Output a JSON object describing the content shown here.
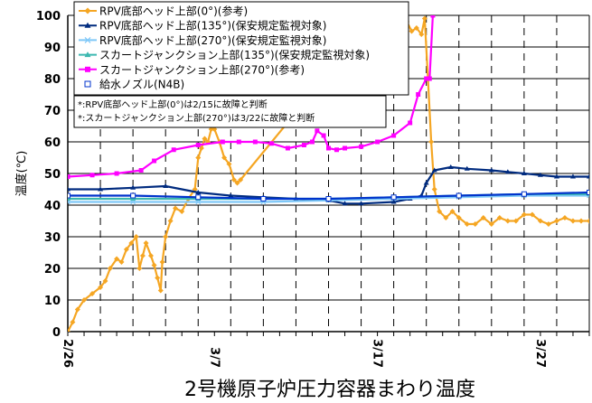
{
  "chart_data": {
    "type": "line",
    "title": "2号機原子炉圧力容器まわり温度",
    "ylabel": "温度(℃)",
    "xlabel": "",
    "ylim": [
      0,
      100
    ],
    "yticks": [
      0,
      10,
      20,
      30,
      40,
      50,
      60,
      70,
      80,
      90,
      100
    ],
    "xlim": [
      0,
      32
    ],
    "xticks": [
      {
        "x": 0,
        "label": "2/26"
      },
      {
        "x": 9,
        "label": "3/7"
      },
      {
        "x": 19,
        "label": "3/17"
      },
      {
        "x": 29,
        "label": "3/27"
      }
    ],
    "grid": {
      "horizontal": true,
      "vertical_dashed": true
    },
    "legend_position": "top-left",
    "series": [
      {
        "name": "RPV底部ヘッド上部(0°)(参考)",
        "color": "#F5A623",
        "marker": "diamond",
        "points": [
          [
            0,
            0
          ],
          [
            0.3,
            3
          ],
          [
            0.6,
            7
          ],
          [
            1,
            10
          ],
          [
            1.5,
            12
          ],
          [
            2,
            14
          ],
          [
            2.3,
            16
          ],
          [
            2.6,
            20
          ],
          [
            3,
            23
          ],
          [
            3.3,
            22
          ],
          [
            3.6,
            26
          ],
          [
            3.9,
            28
          ],
          [
            4.2,
            30
          ],
          [
            4.4,
            20
          ],
          [
            4.6,
            24
          ],
          [
            4.8,
            28
          ],
          [
            5.1,
            24
          ],
          [
            5.3,
            21
          ],
          [
            5.5,
            17
          ],
          [
            5.7,
            13
          ],
          [
            5.8,
            22
          ],
          [
            6,
            30
          ],
          [
            6.3,
            35
          ],
          [
            6.6,
            39
          ],
          [
            7,
            38
          ],
          [
            7.4,
            42
          ],
          [
            7.8,
            45
          ],
          [
            8,
            55
          ],
          [
            8.2,
            58
          ],
          [
            8.4,
            61
          ],
          [
            8.6,
            60
          ],
          [
            8.8,
            64
          ],
          [
            9,
            64
          ],
          [
            9.3,
            60
          ],
          [
            9.6,
            55
          ],
          [
            9.9,
            53
          ],
          [
            10.2,
            48
          ],
          [
            10.4,
            47
          ],
          [
            10.6,
            48
          ],
          [
            20.5,
            110
          ],
          [
            20.8,
            98
          ],
          [
            21.1,
            95
          ],
          [
            21.4,
            96
          ],
          [
            21.7,
            94
          ],
          [
            21.9,
            99
          ],
          [
            22.1,
            80
          ],
          [
            22.3,
            60
          ],
          [
            22.5,
            45
          ],
          [
            22.8,
            38
          ],
          [
            23.2,
            36
          ],
          [
            23.6,
            38
          ],
          [
            24,
            36
          ],
          [
            24.5,
            34
          ],
          [
            25,
            34
          ],
          [
            25.5,
            36
          ],
          [
            26,
            34
          ],
          [
            26.5,
            36
          ],
          [
            27,
            35
          ],
          [
            27.5,
            35
          ],
          [
            28,
            37
          ],
          [
            28.5,
            37
          ],
          [
            29,
            35
          ],
          [
            29.5,
            34
          ],
          [
            30,
            35
          ],
          [
            30.5,
            36
          ],
          [
            31,
            35
          ],
          [
            31.5,
            35
          ],
          [
            32,
            35
          ]
        ]
      },
      {
        "name": "RPV底部ヘッド上部(135°)(保安規定監視対象)",
        "color": "#002B7F",
        "marker": "triangle",
        "points": [
          [
            0,
            45
          ],
          [
            2,
            45
          ],
          [
            4,
            45.5
          ],
          [
            6,
            46
          ],
          [
            8,
            44
          ],
          [
            10,
            43
          ],
          [
            12,
            42.5
          ],
          [
            14,
            42
          ],
          [
            16,
            41.5
          ],
          [
            17,
            40.5
          ],
          [
            18,
            40.5
          ],
          [
            20,
            41
          ],
          [
            21,
            42
          ],
          [
            21.7,
            43
          ],
          [
            22,
            47
          ],
          [
            22.5,
            51
          ],
          [
            23.5,
            52
          ],
          [
            24.5,
            51.5
          ],
          [
            26,
            51
          ],
          [
            27,
            50.5
          ],
          [
            28,
            50
          ],
          [
            29,
            49.5
          ],
          [
            30,
            49
          ],
          [
            31,
            49
          ],
          [
            32,
            49
          ]
        ]
      },
      {
        "name": "RPV底部ヘッド上部(270°)(保安規定監視対象)",
        "color": "#7FC8F8",
        "marker": "x",
        "points": [
          [
            0,
            41
          ],
          [
            4,
            41
          ],
          [
            8,
            41
          ],
          [
            12,
            41
          ],
          [
            16,
            41.5
          ],
          [
            20,
            42
          ],
          [
            24,
            42.5
          ],
          [
            28,
            43
          ],
          [
            32,
            43
          ]
        ]
      },
      {
        "name": "スカートジャンクション上部(135°)(保安規定監視対象)",
        "color": "#3CB8B0",
        "marker": "triangle",
        "points": [
          [
            0,
            42
          ],
          [
            4,
            42
          ],
          [
            8,
            42
          ],
          [
            12,
            42
          ],
          [
            16,
            42
          ],
          [
            20,
            42.5
          ],
          [
            24,
            43
          ],
          [
            28,
            43.5
          ],
          [
            32,
            43.5
          ]
        ]
      },
      {
        "name": "スカートジャンクション上部(270°)(参考)",
        "color": "#FF00FF",
        "marker": "square",
        "points": [
          [
            0,
            49
          ],
          [
            1.5,
            49.5
          ],
          [
            3,
            50
          ],
          [
            4.5,
            51
          ],
          [
            5.3,
            54
          ],
          [
            6.5,
            57.5
          ],
          [
            8,
            59
          ],
          [
            9.5,
            60
          ],
          [
            10.5,
            60
          ],
          [
            11.5,
            60
          ],
          [
            12.5,
            59.5
          ],
          [
            13.5,
            58
          ],
          [
            14.5,
            59
          ],
          [
            15,
            60
          ],
          [
            15.3,
            63.5
          ],
          [
            15.7,
            62
          ],
          [
            16,
            58
          ],
          [
            16.5,
            57.5
          ],
          [
            17,
            58
          ],
          [
            18,
            58.5
          ],
          [
            19,
            60
          ],
          [
            20,
            62
          ],
          [
            21,
            66
          ],
          [
            21.5,
            75
          ],
          [
            22,
            80
          ],
          [
            22.2,
            80
          ],
          [
            22.4,
            100
          ]
        ]
      },
      {
        "name": "給水ノズル(N4B)",
        "color": "#0033CC",
        "marker": "open-square",
        "points": [
          [
            0,
            43
          ],
          [
            4,
            43
          ],
          [
            8,
            42.5
          ],
          [
            12,
            42
          ],
          [
            16,
            42
          ],
          [
            20,
            42.5
          ],
          [
            24,
            43
          ],
          [
            28,
            43.5
          ],
          [
            32,
            44
          ]
        ]
      }
    ],
    "annotations": [
      "*:RPV底部ヘッド上部(0°)は2/15に故障と判断",
      "*:スカートジャンクション上部(270°)は3/22に故障と判断"
    ]
  }
}
